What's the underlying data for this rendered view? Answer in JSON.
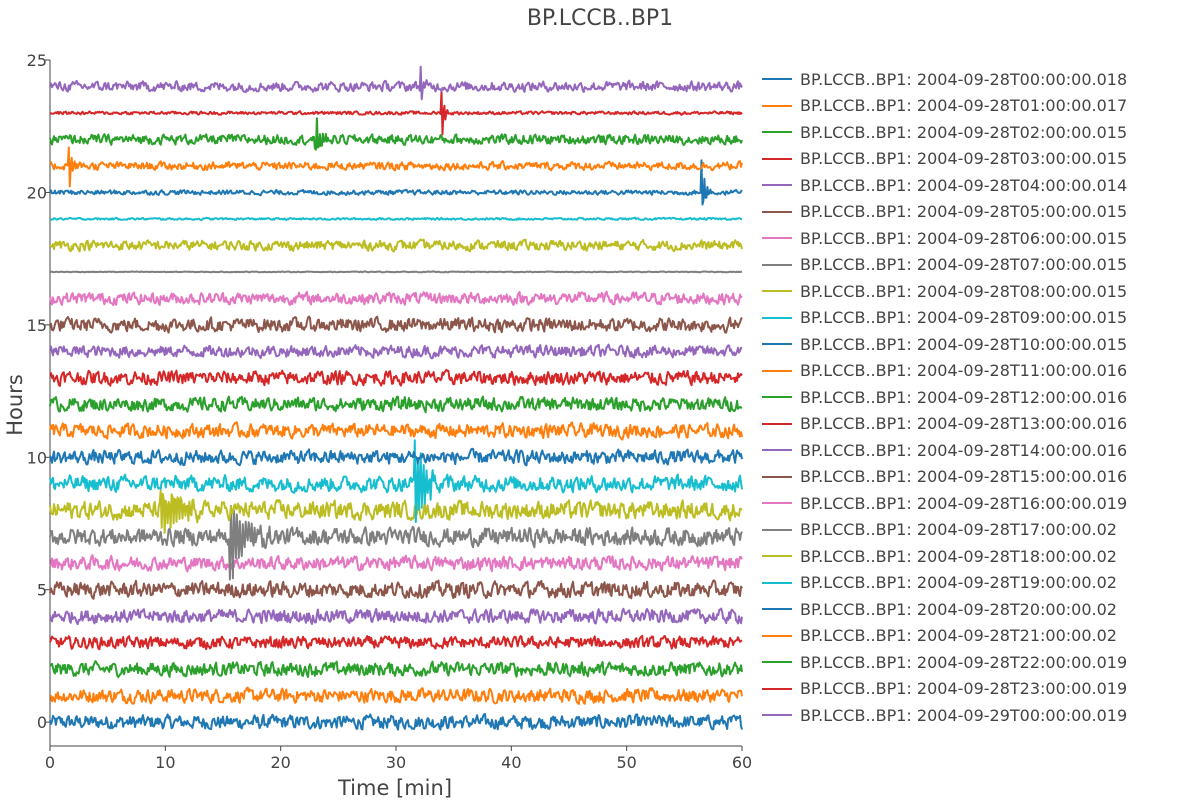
{
  "chart_data": {
    "type": "line",
    "title": "BP.LCCB..BP1",
    "xlabel": "Time [min]",
    "ylabel": "Hours",
    "xlim": [
      0,
      60
    ],
    "ylim": [
      -0.9,
      25
    ],
    "xticks": [
      0,
      10,
      20,
      30,
      40,
      50,
      60
    ],
    "xtick_labels": [
      "0",
      "10",
      "20",
      "30",
      "40",
      "50",
      "60"
    ],
    "yticks": [
      0,
      5,
      10,
      15,
      20,
      25
    ],
    "ytick_labels": [
      "0",
      "5",
      "10",
      "15",
      "20",
      "25"
    ],
    "grid": false,
    "legend_position": "right",
    "series": [
      {
        "name": "BP.LCCB..BP1: 2004-09-28T00:00:00.018",
        "color": "#1f77b4",
        "baseline": 0,
        "amplitude": 0.35
      },
      {
        "name": "BP.LCCB..BP1: 2004-09-28T01:00:00.017",
        "color": "#ff7f0e",
        "baseline": 1,
        "amplitude": 0.35
      },
      {
        "name": "BP.LCCB..BP1: 2004-09-28T02:00:00.015",
        "color": "#2ca02c",
        "baseline": 2,
        "amplitude": 0.35
      },
      {
        "name": "BP.LCCB..BP1: 2004-09-28T03:00:00.015",
        "color": "#d62728",
        "baseline": 3,
        "amplitude": 0.3
      },
      {
        "name": "BP.LCCB..BP1: 2004-09-28T04:00:00.014",
        "color": "#9467bd",
        "baseline": 4,
        "amplitude": 0.35
      },
      {
        "name": "BP.LCCB..BP1: 2004-09-28T05:00:00.015",
        "color": "#8c564b",
        "baseline": 5,
        "amplitude": 0.4
      },
      {
        "name": "BP.LCCB..BP1: 2004-09-28T06:00:00.015",
        "color": "#e377c2",
        "baseline": 6,
        "amplitude": 0.35
      },
      {
        "name": "BP.LCCB..BP1: 2004-09-28T07:00:00.015",
        "color": "#7f7f7f",
        "baseline": 7,
        "amplitude": 0.45
      },
      {
        "name": "BP.LCCB..BP1: 2004-09-28T08:00:00.015",
        "color": "#bcbd22",
        "baseline": 8,
        "amplitude": 0.45
      },
      {
        "name": "BP.LCCB..BP1: 2004-09-28T09:00:00.015",
        "color": "#17becf",
        "baseline": 9,
        "amplitude": 0.4
      },
      {
        "name": "BP.LCCB..BP1: 2004-09-28T10:00:00.015",
        "color": "#1f77b4",
        "baseline": 10,
        "amplitude": 0.35
      },
      {
        "name": "BP.LCCB..BP1: 2004-09-28T11:00:00.016",
        "color": "#ff7f0e",
        "baseline": 11,
        "amplitude": 0.35
      },
      {
        "name": "BP.LCCB..BP1: 2004-09-28T12:00:00.016",
        "color": "#2ca02c",
        "baseline": 12,
        "amplitude": 0.35
      },
      {
        "name": "BP.LCCB..BP1: 2004-09-28T13:00:00.016",
        "color": "#d62728",
        "baseline": 13,
        "amplitude": 0.35
      },
      {
        "name": "BP.LCCB..BP1: 2004-09-28T14:00:00.016",
        "color": "#9467bd",
        "baseline": 14,
        "amplitude": 0.3
      },
      {
        "name": "BP.LCCB..BP1: 2004-09-28T15:00:00.016",
        "color": "#8c564b",
        "baseline": 15,
        "amplitude": 0.35
      },
      {
        "name": "BP.LCCB..BP1: 2004-09-28T16:00:00.019",
        "color": "#e377c2",
        "baseline": 16,
        "amplitude": 0.3
      },
      {
        "name": "BP.LCCB..BP1: 2004-09-28T17:00:00.02",
        "color": "#7f7f7f",
        "baseline": 17,
        "amplitude": 0.02
      },
      {
        "name": "BP.LCCB..BP1: 2004-09-28T18:00:00.02",
        "color": "#bcbd22",
        "baseline": 18,
        "amplitude": 0.25
      },
      {
        "name": "BP.LCCB..BP1: 2004-09-28T19:00:00.02",
        "color": "#17becf",
        "baseline": 19,
        "amplitude": 0.05
      },
      {
        "name": "BP.LCCB..BP1: 2004-09-28T20:00:00.02",
        "color": "#1f77b4",
        "baseline": 20,
        "amplitude": 0.12
      },
      {
        "name": "BP.LCCB..BP1: 2004-09-28T21:00:00.02",
        "color": "#ff7f0e",
        "baseline": 21,
        "amplitude": 0.2
      },
      {
        "name": "BP.LCCB..BP1: 2004-09-28T22:00:00.019",
        "color": "#2ca02c",
        "baseline": 22,
        "amplitude": 0.25
      },
      {
        "name": "BP.LCCB..BP1: 2004-09-28T23:00:00.019",
        "color": "#d62728",
        "baseline": 23,
        "amplitude": 0.08
      },
      {
        "name": "BP.LCCB..BP1: 2004-09-29T00:00:00.019",
        "color": "#9467bd",
        "baseline": 24,
        "amplitude": 0.25
      }
    ],
    "spikes": [
      {
        "series": 7,
        "x": 15.7,
        "height": 1.6,
        "decay": 1.2
      },
      {
        "series": 9,
        "x": 31.7,
        "height": 1.8,
        "decay": 0.8
      },
      {
        "series": 8,
        "x": 9.7,
        "height": 1.0,
        "decay": 1.5
      },
      {
        "series": 20,
        "x": 56.5,
        "height": 1.2,
        "decay": 0.3
      },
      {
        "series": 22,
        "x": 23.0,
        "height": 1.2,
        "decay": 0.3
      },
      {
        "series": 23,
        "x": 34.0,
        "height": 1.0,
        "decay": 0.2
      },
      {
        "series": 21,
        "x": 1.7,
        "height": 0.8,
        "decay": 0.2
      },
      {
        "series": 24,
        "x": 32.1,
        "height": 1.0,
        "decay": 0.2
      }
    ]
  }
}
